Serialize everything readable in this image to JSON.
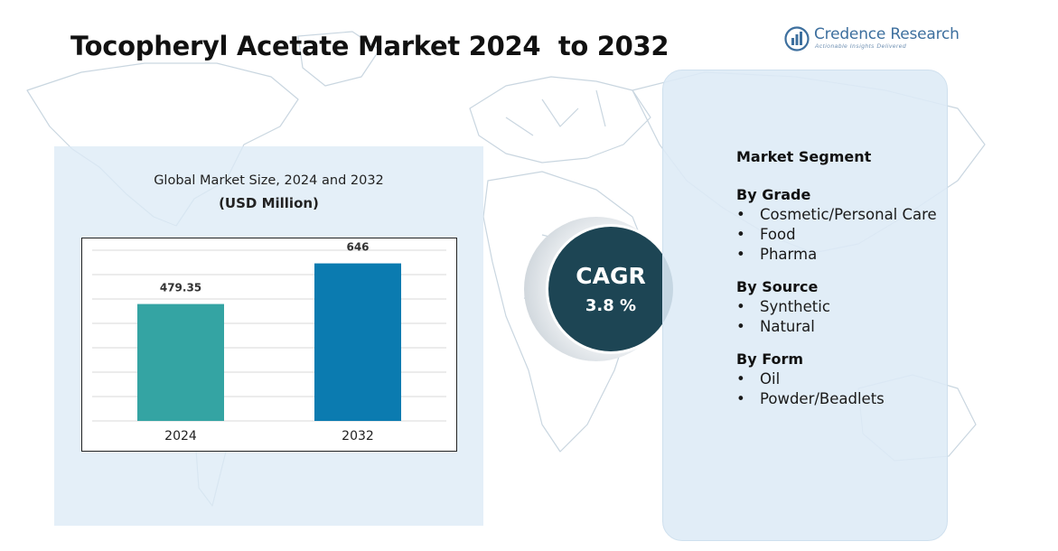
{
  "title": "Tocopheryl Acetate Market 2024  to 2032",
  "brand": {
    "name": "Credence Research",
    "tagline": "Actionable Insights Delivered",
    "icon": "bar-chart-logo-icon",
    "color": "#3d6f9e"
  },
  "chart": {
    "caption_line1": "Global Market Size, 2024 and 2032",
    "caption_line2": "(USD Million)"
  },
  "chart_data": {
    "type": "bar",
    "categories": [
      "2024",
      "2032"
    ],
    "values": [
      479.35,
      646
    ],
    "value_labels": [
      "479.35",
      "646"
    ],
    "bar_colors": [
      "#34a4a3",
      "#0b7bb0"
    ],
    "title": "Global Market Size, 2024 and 2032",
    "ylabel": "(USD Million)",
    "xlabel": "",
    "ylim": [
      0,
      700
    ],
    "grid": true,
    "legend": "none"
  },
  "cagr": {
    "label": "CAGR",
    "value": "3.8 %"
  },
  "segments": {
    "heading": "Market Segment",
    "groups": [
      {
        "title": "By Grade",
        "items": [
          "Cosmetic/Personal Care",
          "Food",
          "Pharma"
        ]
      },
      {
        "title": "By Source",
        "items": [
          "Synthetic",
          "Natural"
        ]
      },
      {
        "title": "By Form",
        "items": [
          "Oil",
          "Powder/Beadlets"
        ]
      }
    ]
  },
  "colors": {
    "panel_bg": "#dde9f5",
    "cagr_circle": "#1d4554",
    "map_outline": "#c5d3de"
  }
}
